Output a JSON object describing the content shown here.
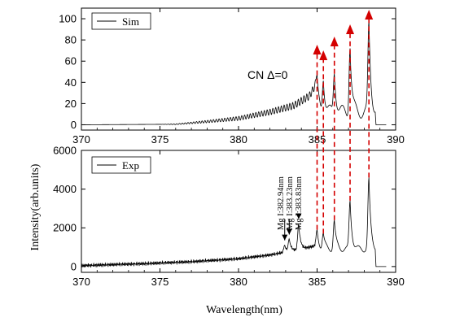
{
  "chart_data": {
    "type": "line",
    "xlabel": "Wavelength(nm)",
    "ylabel": "Intensity(arb.units)",
    "panels": [
      {
        "id": "sim",
        "legend": "Sim",
        "legend_position": "top-left",
        "xlim": [
          370,
          390
        ],
        "ylim": [
          -5,
          110
        ],
        "xticks": [
          370,
          375,
          380,
          385,
          390
        ],
        "yticks": [
          0,
          20,
          40,
          60,
          80,
          100
        ],
        "baseline_points": [
          [
            370,
            0
          ],
          [
            376,
            0.5
          ],
          [
            378,
            3
          ],
          [
            380,
            6
          ],
          [
            382,
            12
          ],
          [
            383.5,
            18
          ],
          [
            384.5,
            27
          ],
          [
            385.0,
            40
          ]
        ],
        "peaks": [
          {
            "x": 385.0,
            "y": 47
          },
          {
            "x": 385.4,
            "y": 40
          },
          {
            "x": 386.1,
            "y": 48
          },
          {
            "x": 387.1,
            "y": 72
          },
          {
            "x": 388.3,
            "y": 98
          }
        ],
        "annotation": "CN Δ=0"
      },
      {
        "id": "exp",
        "legend": "Exp",
        "legend_position": "top-left",
        "xlim": [
          370,
          390
        ],
        "ylim": [
          -300,
          6000
        ],
        "xticks": [
          370,
          375,
          380,
          385,
          390
        ],
        "yticks": [
          0,
          2000,
          4000,
          6000
        ],
        "baseline_points": [
          [
            370,
            50
          ],
          [
            374,
            150
          ],
          [
            377,
            250
          ],
          [
            380,
            400
          ],
          [
            382,
            600
          ],
          [
            384,
            900
          ],
          [
            385,
            1100
          ]
        ],
        "peaks": [
          {
            "x": 382.94,
            "y": 1100
          },
          {
            "x": 383.23,
            "y": 1400
          },
          {
            "x": 383.83,
            "y": 2200
          },
          {
            "x": 385.0,
            "y": 1900
          },
          {
            "x": 385.4,
            "y": 1700
          },
          {
            "x": 386.1,
            "y": 2400
          },
          {
            "x": 387.1,
            "y": 3400
          },
          {
            "x": 388.3,
            "y": 4600
          }
        ],
        "annotations": [
          "Mg I:382.94nm",
          "Mg I:383.23nm",
          "Mg I:383.83nm"
        ]
      }
    ],
    "guide_lines_x": [
      385.0,
      385.4,
      386.1,
      387.1,
      388.3
    ],
    "guide_color": "#d40000"
  }
}
